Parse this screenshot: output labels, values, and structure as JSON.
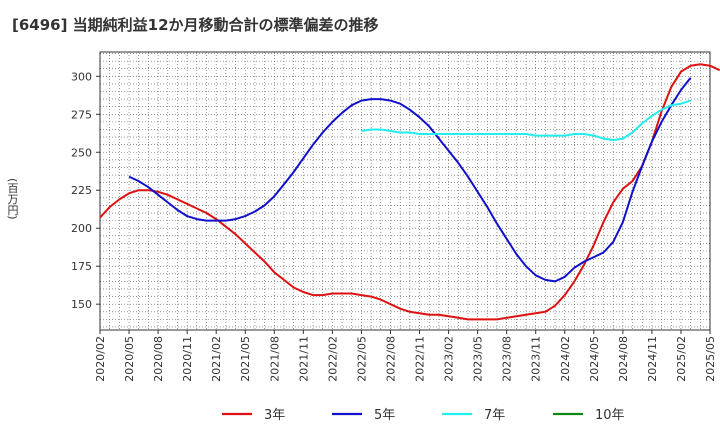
{
  "title": "[6496]  当期純利益12か月移動合計の標準偏差の推移",
  "chart_data": {
    "type": "line",
    "title": "[6496]  当期純利益12か月移動合計の標準偏差の推移",
    "ylabel": "(百万円)",
    "xlabel": "",
    "ylim": [
      133,
      316
    ],
    "yticks": [
      150,
      175,
      200,
      225,
      250,
      275,
      300
    ],
    "x_start": "2020/02",
    "x_end": "2025/05",
    "xtick_labels": [
      "2020/02",
      "2020/05",
      "2020/08",
      "2020/11",
      "2021/02",
      "2021/05",
      "2021/08",
      "2021/11",
      "2022/02",
      "2022/05",
      "2022/08",
      "2022/11",
      "2023/02",
      "2023/05",
      "2023/08",
      "2023/11",
      "2024/02",
      "2024/05",
      "2024/08",
      "2024/11",
      "2025/02",
      "2025/05"
    ],
    "grid": true,
    "legend_position": "bottom",
    "series": [
      {
        "name": "3年",
        "color": "#dd1111",
        "start": "2020/02",
        "values": [
          207,
          214,
          219,
          223,
          225,
          225,
          224,
          222,
          219,
          216,
          213,
          210,
          206,
          201,
          196,
          190,
          184,
          178,
          171,
          166,
          161,
          158,
          156,
          156,
          157,
          157,
          157,
          156,
          155,
          153,
          150,
          147,
          145,
          144,
          143,
          143,
          142,
          141,
          140,
          140,
          140,
          140,
          141,
          142,
          143,
          144,
          145,
          149,
          156,
          165,
          176,
          189,
          204,
          217,
          226,
          231,
          241,
          257,
          277,
          293,
          303,
          307,
          308,
          307,
          304
        ]
      },
      {
        "name": "5年",
        "color": "#1111cc",
        "start": "2020/05",
        "values": [
          234,
          231,
          227,
          222,
          217,
          212,
          208,
          206,
          205,
          205,
          205,
          206,
          208,
          211,
          215,
          221,
          229,
          237,
          246,
          255,
          263,
          270,
          276,
          281,
          284,
          285,
          285,
          284,
          282,
          278,
          273,
          267,
          259,
          251,
          243,
          234,
          224,
          214,
          203,
          193,
          183,
          175,
          169,
          166,
          165,
          168,
          174,
          178,
          181,
          184,
          191,
          204,
          224,
          241,
          257,
          270,
          281,
          291,
          299
        ]
      },
      {
        "name": "7年",
        "color": "#22eeee",
        "start": "2022/05",
        "values": [
          264,
          265,
          265,
          264,
          263,
          263,
          262,
          262,
          262,
          262,
          262,
          262,
          262,
          262,
          262,
          262,
          262,
          262,
          261,
          261,
          261,
          261,
          262,
          262,
          261,
          259,
          258,
          259,
          263,
          269,
          274,
          278,
          281,
          282,
          284
        ]
      },
      {
        "name": "10年",
        "color": "#118811",
        "start": "2020/02",
        "values": []
      }
    ]
  }
}
